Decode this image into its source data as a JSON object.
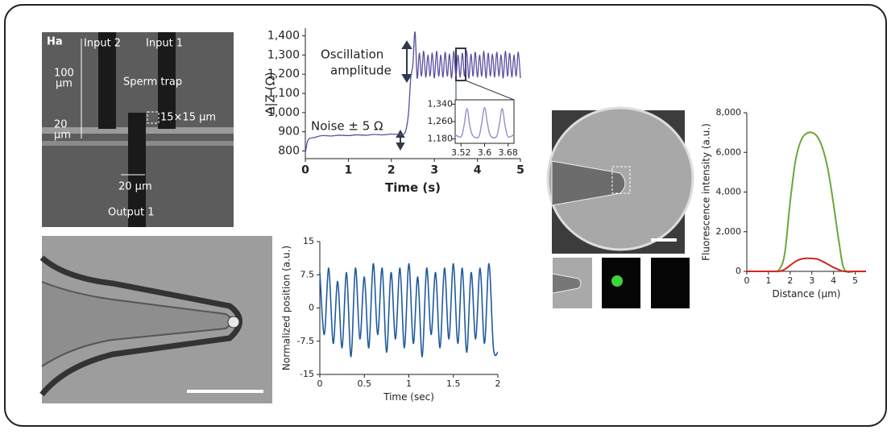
{
  "figure": {
    "micrograph_top": {
      "panel": "Ha",
      "input2": "Input 2",
      "input1": "Input 1",
      "height_value": "100",
      "height_unit": "μm",
      "trap": "Sperm trap",
      "trap_size": "15×15 μm",
      "gap_value": "20",
      "gap_unit": "μm",
      "width": "20 μm",
      "output": "Output 1"
    }
  },
  "chart_data": [
    {
      "type": "line",
      "xlabel": "Time (s)",
      "ylabel": "Δ|Z (Ω)",
      "annotations": [
        "Oscillation",
        "amplitude",
        "Noise ± 5 Ω"
      ],
      "x": [
        0,
        0.05,
        0.1,
        0.2,
        0.4,
        0.6,
        0.8,
        1,
        1.2,
        1.4,
        1.6,
        1.8,
        2,
        2.2,
        2.3,
        2.35,
        2.4,
        2.45,
        2.5,
        2.55,
        2.6,
        2.65,
        2.7,
        2.75,
        2.8,
        2.85,
        2.9,
        2.95,
        3,
        3.05,
        3.1,
        3.15,
        3.2,
        3.25,
        3.3,
        3.35,
        3.4,
        3.45,
        3.5,
        3.55,
        3.6,
        3.65,
        3.7,
        3.75,
        3.8,
        3.85,
        3.9,
        3.95,
        4,
        4.05,
        4.1,
        4.15,
        4.2,
        4.25,
        4.3,
        4.35,
        4.4,
        4.45,
        4.5,
        4.55,
        4.6,
        4.65,
        4.7,
        4.75,
        4.8,
        4.85,
        4.9,
        4.95,
        5
      ],
      "series": [
        {
          "color": "#5a4d9e",
          "values": [
            790,
            850,
            865,
            870,
            880,
            878,
            882,
            880,
            884,
            882,
            886,
            884,
            888,
            886,
            890,
            920,
            1000,
            1180,
            1250,
            1420,
            1180,
            1310,
            1190,
            1320,
            1185,
            1300,
            1190,
            1310,
            1180,
            1320,
            1190,
            1300,
            1185,
            1315,
            1190,
            1305,
            1180,
            1320,
            1190,
            1300,
            1185,
            1310,
            1190,
            1320,
            1180,
            1305,
            1190,
            1315,
            1185,
            1300,
            1190,
            1320,
            1180,
            1310,
            1190,
            1305,
            1185,
            1315,
            1190,
            1300,
            1180,
            1320,
            1190,
            1310,
            1185,
            1300,
            1190,
            1315,
            1180
          ]
        }
      ],
      "xlim": [
        0,
        5
      ],
      "xticks": [
        0,
        1,
        2,
        3,
        4,
        5
      ],
      "ylim": [
        760,
        1440
      ],
      "yticks": [
        800,
        900,
        {
          "value": 1000,
          "label": "1,000"
        },
        {
          "value": 1100,
          "label": "1,100"
        },
        {
          "value": 1200,
          "label": "1,200"
        },
        {
          "value": 1300,
          "label": "1,300"
        },
        {
          "value": 1400,
          "label": "1,400"
        }
      ]
    },
    {
      "type": "line",
      "x": [
        3.5,
        3.52,
        3.53,
        3.54,
        3.55,
        3.56,
        3.58,
        3.59,
        3.6,
        3.61,
        3.62,
        3.64,
        3.65,
        3.66,
        3.67,
        3.68,
        3.7
      ],
      "series": [
        {
          "color": "#9a93cf",
          "values": [
            1200,
            1190,
            1240,
            1320,
            1240,
            1195,
            1190,
            1250,
            1325,
            1250,
            1195,
            1190,
            1245,
            1320,
            1240,
            1190,
            1200
          ]
        }
      ],
      "xlim": [
        3.5,
        3.7
      ],
      "xticks": [
        3.52,
        3.6,
        3.68
      ],
      "ylim": [
        1160,
        1360
      ],
      "yticks": [
        {
          "value": 1180,
          "label": "1,180"
        },
        {
          "value": 1260,
          "label": "1,260"
        },
        {
          "value": 1340,
          "label": "1,340"
        }
      ]
    },
    {
      "type": "line",
      "xlabel": "Time (sec)",
      "ylabel": "Normalized position (a.u.)",
      "x": [
        0,
        0.05,
        0.1,
        0.15,
        0.2,
        0.25,
        0.3,
        0.35,
        0.4,
        0.45,
        0.5,
        0.55,
        0.6,
        0.65,
        0.7,
        0.75,
        0.8,
        0.85,
        0.9,
        0.95,
        1,
        1.05,
        1.1,
        1.15,
        1.2,
        1.25,
        1.3,
        1.35,
        1.4,
        1.45,
        1.5,
        1.55,
        1.6,
        1.65,
        1.7,
        1.75,
        1.8,
        1.85,
        1.9,
        1.95,
        2
      ],
      "series": [
        {
          "color": "#1f5a9e",
          "values": [
            8,
            -6,
            9,
            -8,
            6,
            -9,
            8,
            -11,
            9,
            -7,
            7,
            -9,
            10,
            -6,
            9,
            -10,
            8,
            -7,
            9,
            -9,
            10,
            -8,
            7,
            -11,
            9,
            -6,
            8,
            -9,
            9,
            -7,
            10,
            -8,
            9,
            -10,
            8,
            -7,
            9,
            -8,
            10,
            -9,
            -10
          ]
        }
      ],
      "xlim": [
        0,
        2
      ],
      "xticks": [
        0,
        0.5,
        1,
        1.5,
        2
      ],
      "ylim": [
        -15,
        15
      ],
      "yticks": [
        15,
        7.5,
        0,
        -7.5,
        -15
      ]
    },
    {
      "type": "line",
      "xlabel": "Distance (μm)",
      "ylabel": "Fluorescence intensity (a.u.)",
      "x": [
        0,
        0.5,
        1,
        1.25,
        1.5,
        1.75,
        2,
        2.25,
        2.5,
        2.75,
        3,
        3.25,
        3.5,
        3.75,
        4,
        4.25,
        4.5,
        5,
        5.5
      ],
      "series": [
        {
          "color": "#6aa83a",
          "values": [
            0,
            0,
            0,
            0,
            100,
            900,
            3500,
            5600,
            6600,
            6950,
            7000,
            6800,
            6200,
            5100,
            3400,
            1500,
            100,
            0,
            0
          ]
        },
        {
          "color": "#d42424",
          "values": [
            0,
            0,
            0,
            0,
            0,
            100,
            300,
            500,
            620,
            660,
            650,
            620,
            500,
            350,
            200,
            80,
            0,
            0,
            0
          ]
        }
      ],
      "xlim": [
        0,
        5.5
      ],
      "xticks": [
        0,
        1,
        2,
        3,
        4,
        5
      ],
      "ylim": [
        0,
        8000
      ],
      "yticks": [
        0,
        {
          "value": 2000,
          "label": "2,000"
        },
        {
          "value": 4000,
          "label": "4,000"
        },
        {
          "value": 6000,
          "label": "6,000"
        },
        {
          "value": 8000,
          "label": "8,000"
        }
      ]
    }
  ]
}
